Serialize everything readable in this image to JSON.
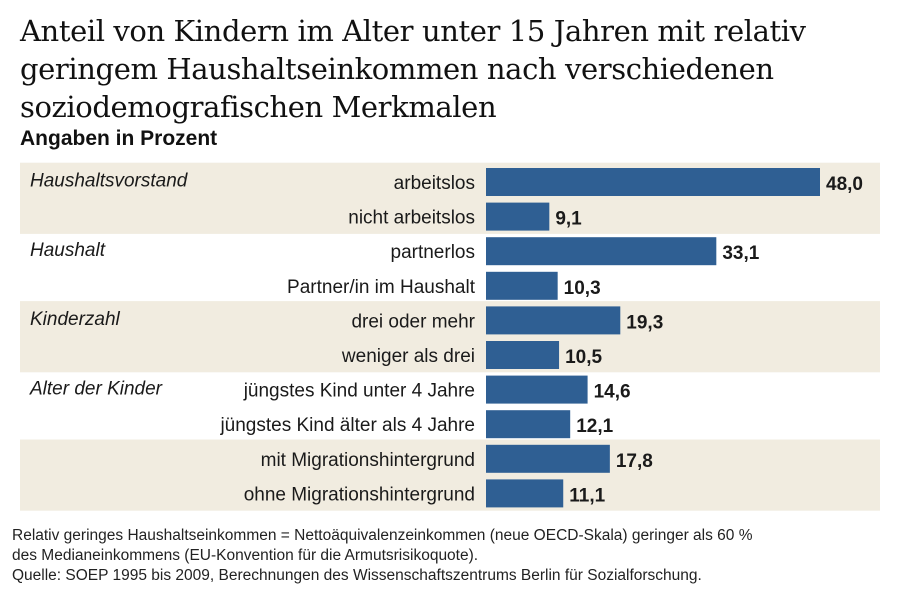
{
  "title": "Anteil von Kindern im Alter unter 15 Jahren mit relativ geringem Haushaltseinkommen nach verschiedenen soziodemografischen Merkmalen",
  "subtitle": "Angaben in Prozent",
  "colors": {
    "bar": "#2f5f93",
    "band": "#f1ece0",
    "text": "#1a1a1a"
  },
  "chart_data": {
    "type": "bar",
    "orientation": "horizontal",
    "value_unit": "%",
    "xlim": [
      0,
      48
    ],
    "grid": false,
    "groups": [
      {
        "label": "Haushaltsvorstand",
        "shaded": true,
        "items": [
          {
            "label": "arbeitslos",
            "value": 48.0,
            "value_label": "48,0"
          },
          {
            "label": "nicht arbeitslos",
            "value": 9.1,
            "value_label": "9,1"
          }
        ]
      },
      {
        "label": "Haushalt",
        "shaded": false,
        "items": [
          {
            "label": "partnerlos",
            "value": 33.1,
            "value_label": "33,1"
          },
          {
            "label": "Partner/in im Haushalt",
            "value": 10.3,
            "value_label": "10,3"
          }
        ]
      },
      {
        "label": "Kinderzahl",
        "shaded": true,
        "items": [
          {
            "label": "drei oder mehr",
            "value": 19.3,
            "value_label": "19,3"
          },
          {
            "label": "weniger als drei",
            "value": 10.5,
            "value_label": "10,5"
          }
        ]
      },
      {
        "label": "Alter der Kinder",
        "shaded": false,
        "items": [
          {
            "label": "jüngstes Kind unter 4 Jahre",
            "value": 14.6,
            "value_label": "14,6"
          },
          {
            "label": "jüngstes Kind älter als 4 Jahre",
            "value": 12.1,
            "value_label": "12,1"
          }
        ]
      },
      {
        "label": "",
        "shaded": true,
        "items": [
          {
            "label": "mit Migrationshintergrund",
            "value": 17.8,
            "value_label": "17,8"
          },
          {
            "label": "ohne Migrationshintergrund",
            "value": 11.1,
            "value_label": "11,1"
          }
        ]
      }
    ]
  },
  "notes": {
    "line1": "Relativ geringes Haushaltseinkommen = Nettoäquivalenzeinkommen (neue OECD-Skala) geringer als 60 %",
    "line2": "des Medianeinkommens (EU-Konvention für die Armutsrisikoquote).",
    "source": "Quelle: SOEP 1995 bis 2009, Berechnungen des Wissenschaftszentrums Berlin für Sozialforschung."
  }
}
